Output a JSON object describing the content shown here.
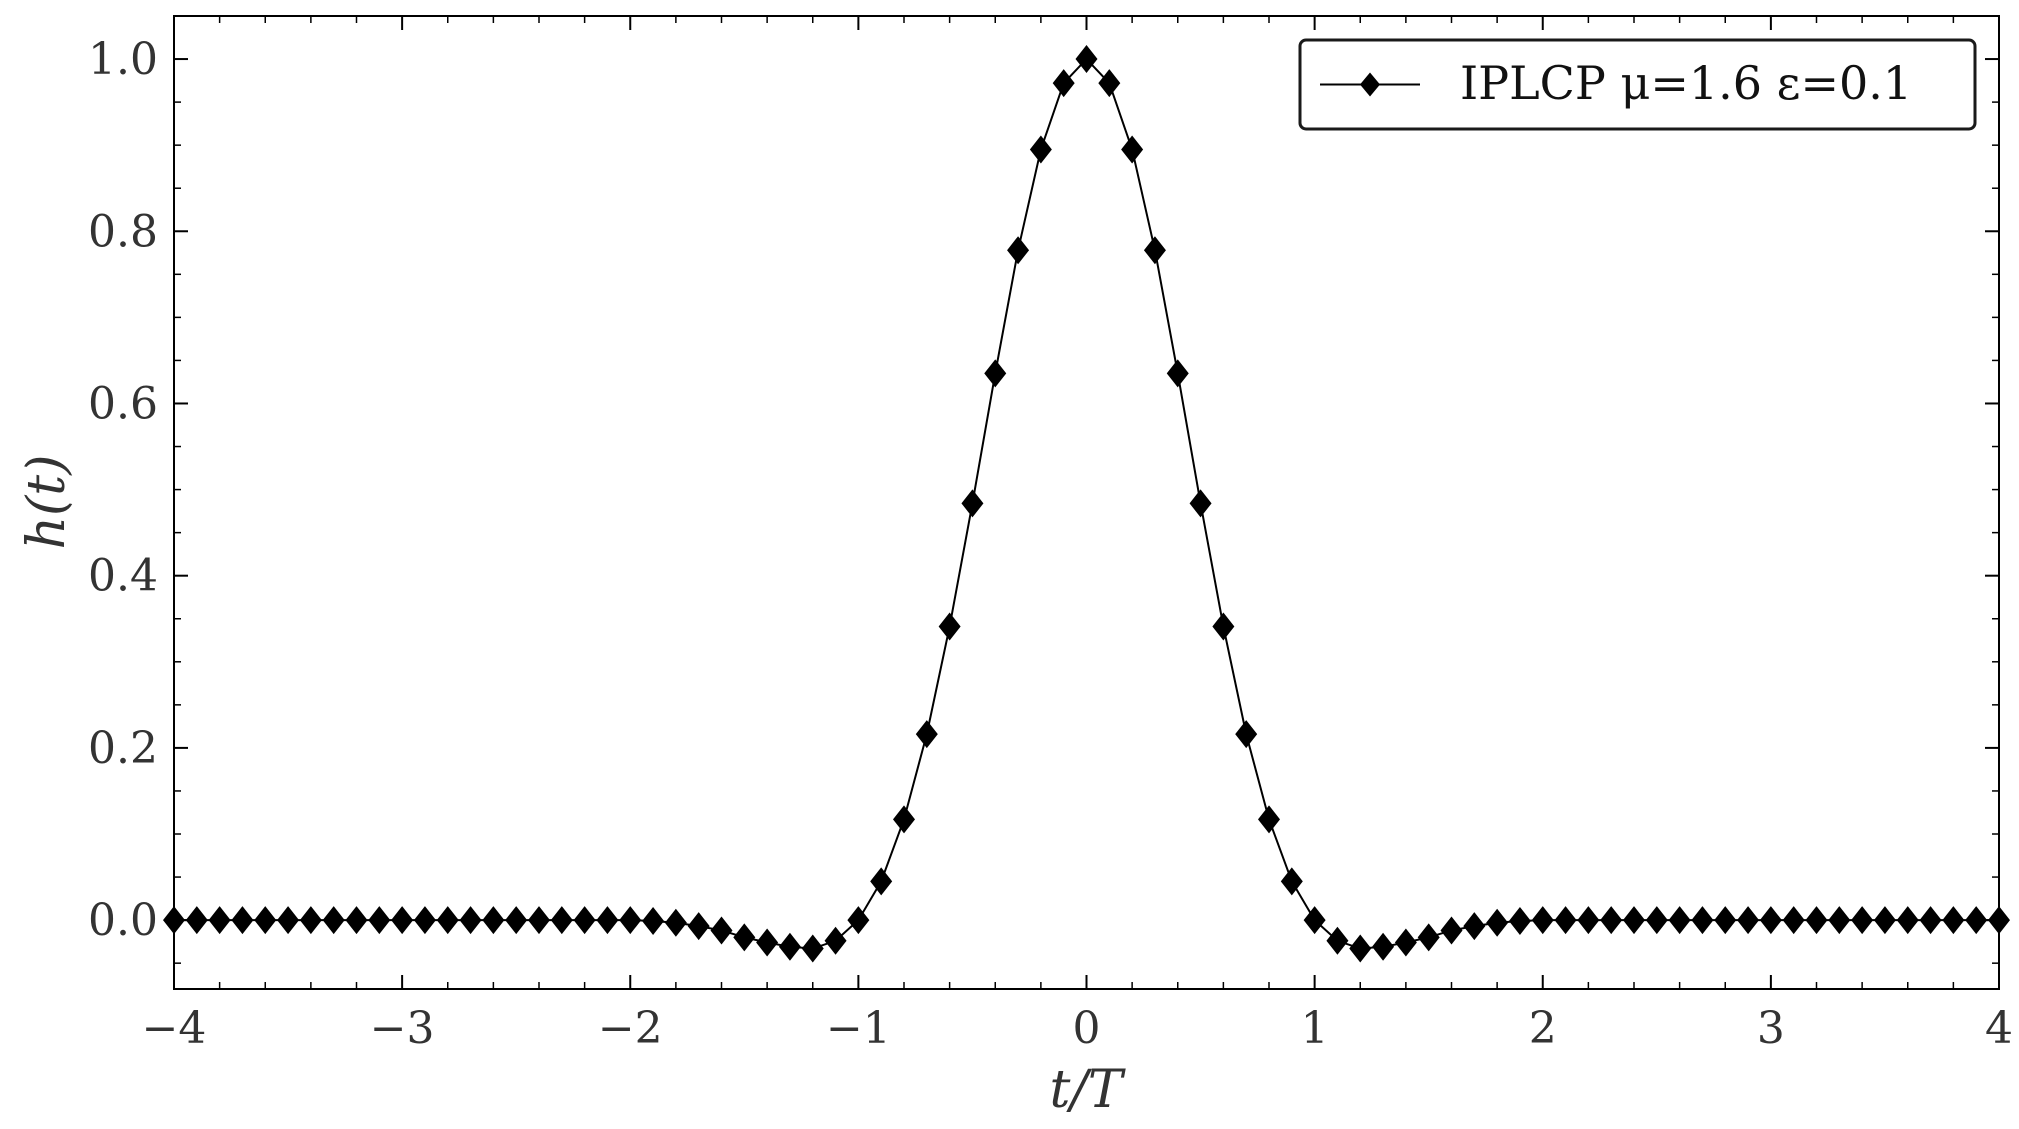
{
  "chart_data": {
    "type": "line",
    "title": "",
    "xlabel": "t/T",
    "ylabel": "h(t)",
    "xlim": [
      -4,
      4
    ],
    "ylim": [
      -0.08,
      1.05
    ],
    "xticks": [
      -4,
      -3,
      -2,
      -1,
      0,
      1,
      2,
      3,
      4
    ],
    "xtick_labels": [
      "−4",
      "−3",
      "−2",
      "−1",
      "0",
      "1",
      "2",
      "3",
      "4"
    ],
    "yticks": [
      0.0,
      0.2,
      0.4,
      0.6,
      0.8,
      1.0
    ],
    "ytick_labels": [
      "0.0",
      "0.2",
      "0.4",
      "0.6",
      "0.8",
      "1.0"
    ],
    "grid": false,
    "legend_position": "top-right",
    "series": [
      {
        "name": "IPLCP μ=1.6 ε=0.1",
        "color": "#000000",
        "marker": "diamond",
        "x": [
          -4.0,
          -3.9,
          -3.8,
          -3.7,
          -3.6,
          -3.5,
          -3.4,
          -3.3,
          -3.2,
          -3.1,
          -3.0,
          -2.9,
          -2.8,
          -2.7,
          -2.6,
          -2.5,
          -2.4,
          -2.3,
          -2.2,
          -2.1,
          -2.0,
          -1.9,
          -1.8,
          -1.7,
          -1.6,
          -1.5,
          -1.4,
          -1.3,
          -1.2,
          -1.1,
          -1.0,
          -0.9,
          -0.8,
          -0.7,
          -0.6,
          -0.5,
          -0.4,
          -0.3,
          -0.2,
          -0.1,
          0.0,
          0.1,
          0.2,
          0.3,
          0.4,
          0.5,
          0.6,
          0.7,
          0.8,
          0.9,
          1.0,
          1.1,
          1.2,
          1.3,
          1.4,
          1.5,
          1.6,
          1.7,
          1.8,
          1.9,
          2.0,
          2.1,
          2.2,
          2.3,
          2.4,
          2.5,
          2.6,
          2.7,
          2.8,
          2.9,
          3.0,
          3.1,
          3.2,
          3.3,
          3.4,
          3.5,
          3.6,
          3.7,
          3.8,
          3.9,
          4.0
        ],
        "y": [
          0.0,
          0.0,
          0.0,
          0.0,
          0.0,
          0.0,
          0.0,
          0.0,
          0.0,
          0.0,
          0.0,
          0.0,
          0.0,
          0.0,
          0.0,
          0.0,
          0.0,
          0.0,
          0.0,
          0.0,
          0.0,
          -0.001,
          -0.003,
          -0.007,
          -0.012,
          -0.02,
          -0.026,
          -0.031,
          -0.033,
          -0.024,
          0.0,
          0.045,
          0.117,
          0.216,
          0.341,
          0.484,
          0.635,
          0.778,
          0.895,
          0.972,
          1.0,
          0.972,
          0.895,
          0.778,
          0.635,
          0.484,
          0.341,
          0.216,
          0.117,
          0.045,
          0.0,
          -0.024,
          -0.033,
          -0.031,
          -0.026,
          -0.02,
          -0.012,
          -0.007,
          -0.003,
          -0.001,
          0.0,
          0.0,
          0.0,
          0.0,
          0.0,
          0.0,
          0.0,
          0.0,
          0.0,
          0.0,
          0.0,
          0.0,
          0.0,
          0.0,
          0.0,
          0.0,
          0.0,
          0.0,
          0.0,
          0.0,
          0.0
        ]
      }
    ]
  }
}
